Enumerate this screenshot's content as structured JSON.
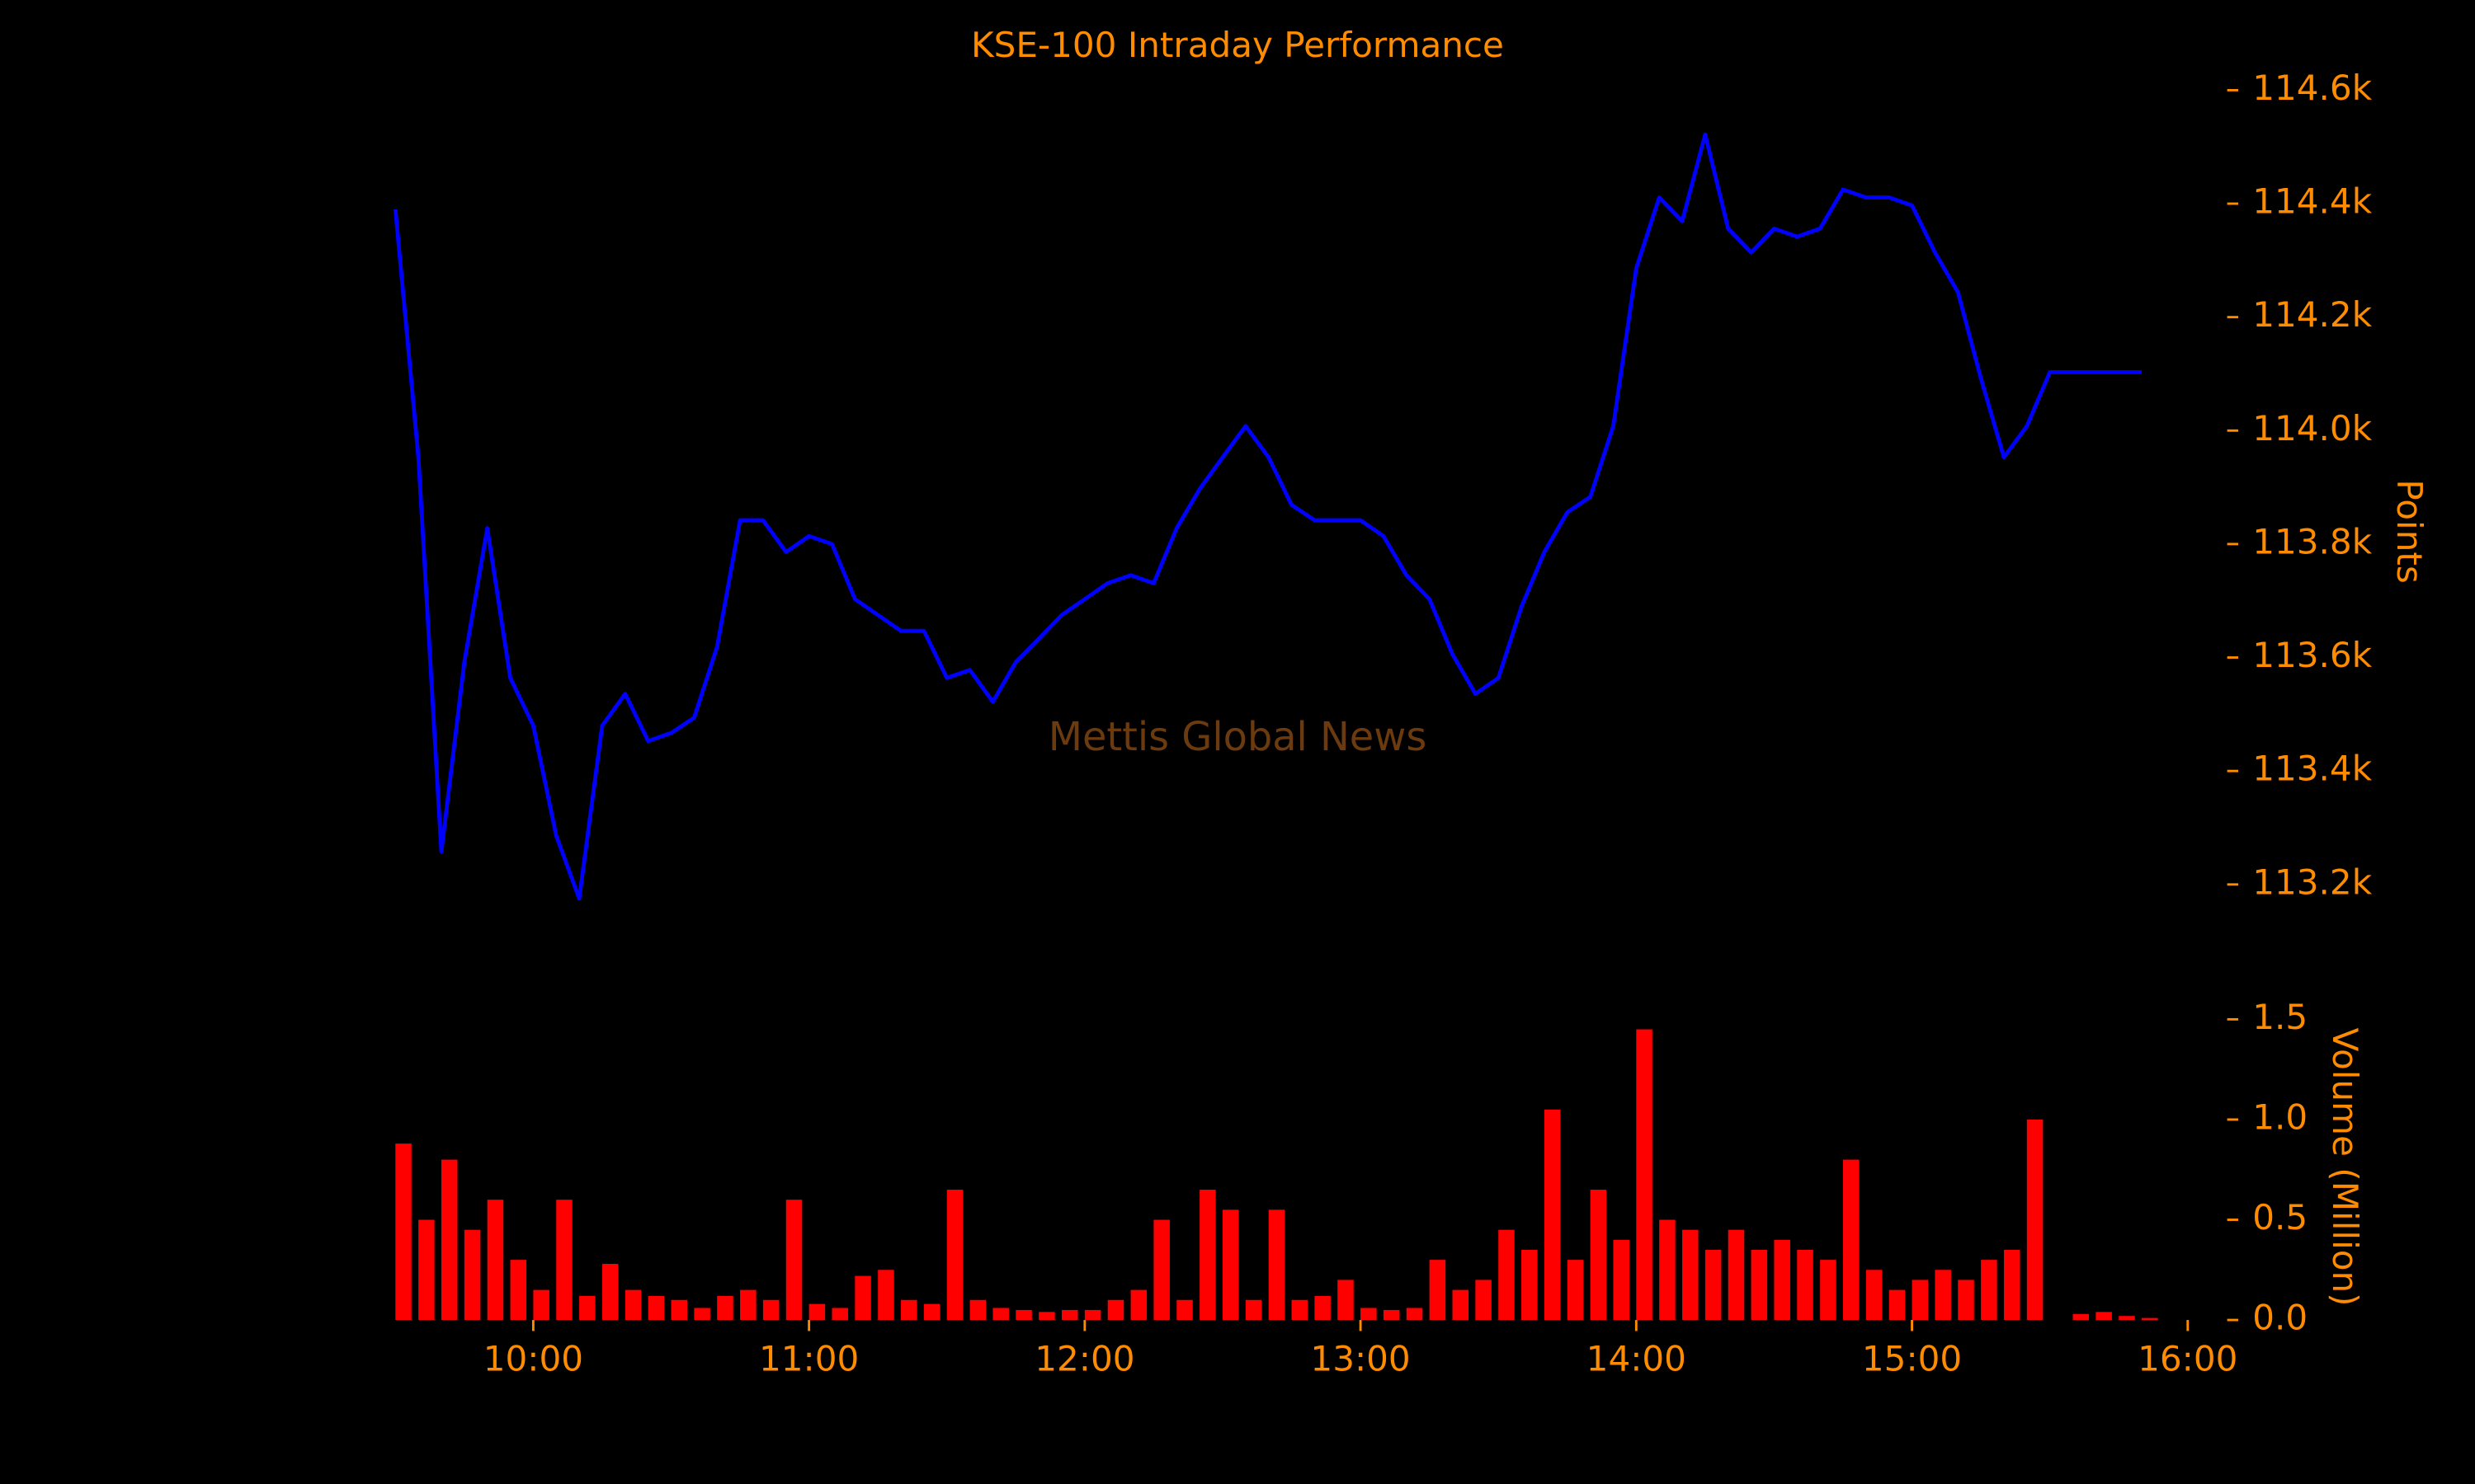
{
  "chart_data": {
    "type": "line",
    "title": "KSE-100 Intraday Performance",
    "watermark": "Mettis Global News",
    "ylabel": "Points",
    "y2label": "Volume (Million)",
    "xlim": [
      "09:30",
      "16:00"
    ],
    "xticks": [
      "10:00",
      "11:00",
      "12:00",
      "13:00",
      "14:00",
      "15:00",
      "16:00"
    ],
    "ylim": [
      113080,
      114620
    ],
    "yticks": [
      {
        "value": 113200,
        "label": "113.2k"
      },
      {
        "value": 113400,
        "label": "113.4k"
      },
      {
        "value": 113600,
        "label": "113.6k"
      },
      {
        "value": 113800,
        "label": "113.8k"
      },
      {
        "value": 114000,
        "label": "114.0k"
      },
      {
        "value": 114200,
        "label": "114.2k"
      },
      {
        "value": 114400,
        "label": "114.4k"
      },
      {
        "value": 114600,
        "label": "114.6k"
      }
    ],
    "y2lim": [
      0,
      1.55
    ],
    "y2ticks": [
      {
        "value": 0,
        "label": "0.0"
      },
      0.5,
      {
        "value": 1,
        "label": "1.0"
      },
      1.5
    ],
    "series": [
      {
        "color": "#0000ff",
        "x": [
          "09:30",
          "09:35",
          "09:40",
          "09:45",
          "09:50",
          "09:55",
          "10:00",
          "10:05",
          "10:10",
          "10:15",
          "10:20",
          "10:25",
          "10:30",
          "10:35",
          "10:40",
          "10:45",
          "10:50",
          "10:55",
          "11:00",
          "11:05",
          "11:10",
          "11:15",
          "11:20",
          "11:25",
          "11:30",
          "11:35",
          "11:40",
          "11:45",
          "11:50",
          "11:55",
          "12:00",
          "12:05",
          "12:10",
          "12:15",
          "12:20",
          "12:25",
          "12:30",
          "12:35",
          "12:40",
          "12:45",
          "12:50",
          "12:55",
          "13:00",
          "13:05",
          "13:10",
          "13:15",
          "13:20",
          "13:25",
          "13:30",
          "13:35",
          "13:40",
          "13:45",
          "13:50",
          "13:55",
          "14:00",
          "14:05",
          "14:10",
          "14:15",
          "14:20",
          "14:25",
          "14:30",
          "14:35",
          "14:40",
          "14:45",
          "14:50",
          "14:55",
          "15:00",
          "15:05",
          "15:10",
          "15:15",
          "15:20",
          "15:25",
          "15:30",
          "15:35",
          "15:40",
          "15:45",
          "15:50"
        ],
        "values": [
          114390,
          113953,
          113258,
          113592,
          113828,
          113564,
          113480,
          113286,
          113175,
          113480,
          113536,
          113453,
          113467,
          113494,
          113619,
          113842,
          113842,
          113786,
          113814,
          113800,
          113703,
          113675,
          113647,
          113647,
          113564,
          113578,
          113522,
          113592,
          113633,
          113675,
          113703,
          113731,
          113745,
          113731,
          113828,
          113897,
          113953,
          114008,
          113953,
          113869,
          113842,
          113842,
          113842,
          113814,
          113745,
          113703,
          113606,
          113536,
          113564,
          113689,
          113786,
          113856,
          113883,
          114008,
          114286,
          114411,
          114369,
          114522,
          114356,
          114314,
          114356,
          114342,
          114356,
          114425,
          114411,
          114411,
          114397,
          114314,
          114244,
          114092,
          113953,
          114008,
          114103,
          114103,
          114103,
          114103,
          114103
        ]
      },
      {
        "color": "#ff0000",
        "axis": "y2",
        "x": [
          "09:30",
          "09:35",
          "09:40",
          "09:45",
          "09:50",
          "09:55",
          "10:00",
          "10:05",
          "10:10",
          "10:15",
          "10:20",
          "10:25",
          "10:30",
          "10:35",
          "10:40",
          "10:45",
          "10:50",
          "10:55",
          "11:00",
          "11:05",
          "11:10",
          "11:15",
          "11:20",
          "11:25",
          "11:30",
          "11:35",
          "11:40",
          "11:45",
          "11:50",
          "11:55",
          "12:00",
          "12:05",
          "12:10",
          "12:15",
          "12:20",
          "12:25",
          "12:30",
          "12:35",
          "12:40",
          "12:45",
          "12:50",
          "12:55",
          "13:00",
          "13:05",
          "13:10",
          "13:15",
          "13:20",
          "13:25",
          "13:30",
          "13:35",
          "13:40",
          "13:45",
          "13:50",
          "13:55",
          "14:00",
          "14:05",
          "14:10",
          "14:15",
          "14:20",
          "14:25",
          "14:30",
          "14:35",
          "14:40",
          "14:45",
          "14:50",
          "14:55",
          "15:00",
          "15:05",
          "15:10",
          "15:15",
          "15:20",
          "15:25",
          "15:35",
          "15:40",
          "15:45",
          "15:50"
        ],
        "values": [
          0.88,
          0.5,
          0.8,
          0.45,
          0.6,
          0.3,
          0.15,
          0.6,
          0.12,
          0.28,
          0.15,
          0.12,
          0.1,
          0.06,
          0.12,
          0.15,
          0.1,
          0.6,
          0.08,
          0.06,
          0.22,
          0.25,
          0.1,
          0.08,
          0.65,
          0.1,
          0.06,
          0.05,
          0.04,
          0.05,
          0.05,
          0.1,
          0.15,
          0.5,
          0.1,
          0.65,
          0.55,
          0.1,
          0.55,
          0.1,
          0.12,
          0.2,
          0.06,
          0.05,
          0.06,
          0.3,
          0.15,
          0.2,
          0.45,
          0.35,
          1.05,
          0.3,
          0.65,
          0.4,
          1.45,
          0.5,
          0.45,
          0.35,
          0.45,
          0.35,
          0.4,
          0.35,
          0.3,
          0.8,
          0.25,
          0.15,
          0.2,
          0.25,
          0.2,
          0.3,
          0.35,
          1.0,
          0.03,
          0.04,
          0.02,
          0.01
        ]
      }
    ]
  }
}
